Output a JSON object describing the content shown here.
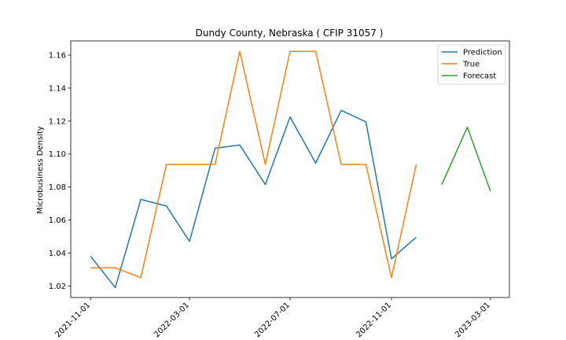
{
  "chart_data": {
    "type": "line",
    "title": "Dundy County, Nebraska ( CFIP 31057 )",
    "xlabel": "",
    "ylabel": "Microbusiness Density",
    "xlim": [
      "2021-10-08",
      "2023-03-24"
    ],
    "ylim": [
      1.013,
      1.1686
    ],
    "yticks": [
      1.02,
      1.04,
      1.06,
      1.08,
      1.1,
      1.12,
      1.14,
      1.16
    ],
    "xticks": [
      "2021-11-01",
      "2022-03-01",
      "2022-07-01",
      "2022-11-01",
      "2023-03-01"
    ],
    "grid": false,
    "legend": "top-right",
    "series": [
      {
        "name": "Prediction",
        "color": "#1f77b4",
        "x": [
          "2021-11-01",
          "2021-12-01",
          "2022-01-01",
          "2022-02-01",
          "2022-03-01",
          "2022-04-01",
          "2022-05-01",
          "2022-06-01",
          "2022-07-01",
          "2022-08-01",
          "2022-09-01",
          "2022-10-01",
          "2022-11-01",
          "2022-12-01"
        ],
        "values": [
          1.038,
          1.019,
          1.0725,
          1.0685,
          1.047,
          1.1035,
          1.1055,
          1.0815,
          1.1225,
          1.0945,
          1.1265,
          1.1195,
          1.0365,
          1.0495
        ]
      },
      {
        "name": "True",
        "color": "#ff7f0e",
        "x": [
          "2021-11-01",
          "2021-12-01",
          "2022-01-01",
          "2022-02-01",
          "2022-03-01",
          "2022-04-01",
          "2022-05-01",
          "2022-06-01",
          "2022-07-01",
          "2022-08-01",
          "2022-09-01",
          "2022-10-01",
          "2022-11-01",
          "2022-12-01"
        ],
        "values": [
          1.031,
          1.031,
          1.025,
          1.0937,
          1.0937,
          1.0937,
          1.1623,
          1.0937,
          1.1623,
          1.1623,
          1.0937,
          1.0937,
          1.025,
          1.0937
        ]
      },
      {
        "name": "Forecast",
        "color": "#2ca02c",
        "x": [
          "2023-01-01",
          "2023-02-01",
          "2023-03-01"
        ],
        "values": [
          1.0815,
          1.1163,
          1.0775
        ]
      }
    ]
  }
}
